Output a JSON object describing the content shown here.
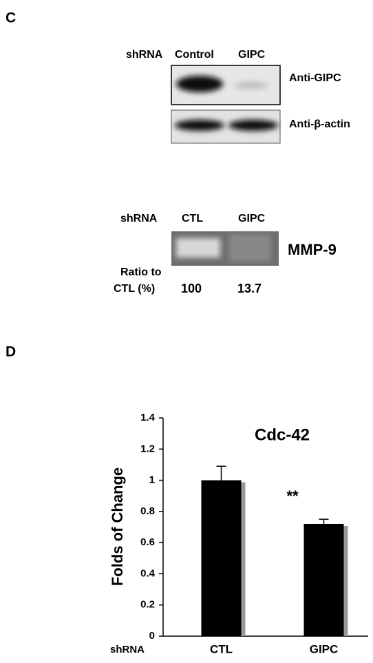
{
  "panel_c": {
    "label": "C",
    "blot1": {
      "header_label": "shRNA",
      "lanes": [
        "Control",
        "GIPC"
      ],
      "rows": [
        "Anti-GIPC",
        "Anti-β-actin"
      ]
    },
    "blot2": {
      "header_label": "shRNA",
      "lanes": [
        "CTL",
        "GIPC"
      ],
      "row": "MMP-9",
      "ratio_label_1": "Ratio to",
      "ratio_label_2": "CTL (%)",
      "ratios": [
        "100",
        "13.7"
      ]
    }
  },
  "chart_data": {
    "panel_label": "D",
    "type": "bar",
    "title": "Cdc-42",
    "y_label": "Folds of Change",
    "x_prefix": "shRNA",
    "categories": [
      "CTL",
      "GIPC"
    ],
    "values": [
      1.0,
      0.72
    ],
    "errors": [
      0.09,
      0.03
    ],
    "annotation": "**",
    "color": "#000000",
    "shadow_color": "#999999",
    "ylim": [
      0,
      1.4
    ],
    "yticks": [
      0,
      0.2,
      0.4,
      0.6,
      0.8,
      1,
      1.2,
      1.4
    ]
  }
}
